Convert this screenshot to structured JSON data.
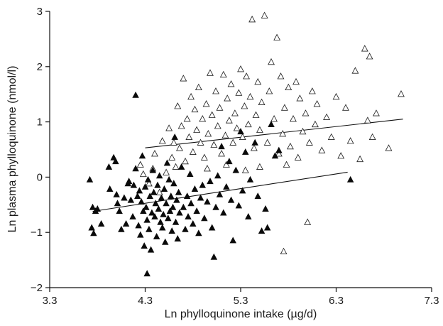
{
  "chart_data": {
    "type": "scatter",
    "title": "",
    "xlabel": "Ln phylloquinone intake (µg/d)",
    "ylabel": "Ln plasma phylloquinone (nmol/l)",
    "xlim": [
      3.3,
      7.3
    ],
    "ylim": [
      -2,
      3
    ],
    "xticks": [
      "3.3",
      "4.3",
      "5.3",
      "6.3",
      "7.3"
    ],
    "yticks": [
      "−2",
      "−1",
      "0",
      "1",
      "2",
      "3"
    ],
    "grid": false,
    "legend": "none",
    "series": [
      {
        "marker": "filled-triangle",
        "color": "#000000",
        "points": [
          [
            3.72,
            -0.05
          ],
          [
            3.74,
            -0.92
          ],
          [
            3.75,
            -0.55
          ],
          [
            3.76,
            -1.02
          ],
          [
            3.78,
            -0.62
          ],
          [
            3.8,
            -0.58
          ],
          [
            3.84,
            -0.85
          ],
          [
            3.92,
            0.18
          ],
          [
            3.93,
            -0.22
          ],
          [
            3.97,
            0.35
          ],
          [
            3.99,
            0.28
          ],
          [
            4.0,
            -0.32
          ],
          [
            4.01,
            -0.48
          ],
          [
            4.03,
            -0.62
          ],
          [
            4.05,
            -0.95
          ],
          [
            4.08,
            -0.38
          ],
          [
            4.1,
            -0.85
          ],
          [
            4.12,
            -0.12
          ],
          [
            4.13,
            -0.08
          ],
          [
            4.15,
            -0.42
          ],
          [
            4.17,
            -0.72
          ],
          [
            4.18,
            -0.15
          ],
          [
            4.2,
            0.15
          ],
          [
            4.2,
            1.48
          ],
          [
            4.22,
            -0.35
          ],
          [
            4.23,
            -0.88
          ],
          [
            4.24,
            -0.25
          ],
          [
            4.25,
            -1.05
          ],
          [
            4.26,
            -0.45
          ],
          [
            4.27,
            0.38
          ],
          [
            4.28,
            -0.62
          ],
          [
            4.29,
            -1.25
          ],
          [
            4.3,
            -0.18
          ],
          [
            4.31,
            -0.55
          ],
          [
            4.32,
            -0.78
          ],
          [
            4.32,
            -1.75
          ],
          [
            4.33,
            -0.05
          ],
          [
            4.34,
            -0.95
          ],
          [
            4.35,
            -0.35
          ],
          [
            4.36,
            -1.32
          ],
          [
            4.37,
            -0.65
          ],
          [
            4.38,
            0.12
          ],
          [
            4.39,
            -0.28
          ],
          [
            4.4,
            -0.72
          ],
          [
            4.41,
            -0.48
          ],
          [
            4.42,
            -1.08
          ],
          [
            4.43,
            -0.15
          ],
          [
            4.44,
            -0.58
          ],
          [
            4.45,
            0.02
          ],
          [
            4.46,
            -0.82
          ],
          [
            4.47,
            -0.38
          ],
          [
            4.48,
            -0.92
          ],
          [
            4.49,
            -0.68
          ],
          [
            4.5,
            -0.22
          ],
          [
            4.51,
            -1.18
          ],
          [
            4.52,
            -0.48
          ],
          [
            4.53,
            0.25
          ],
          [
            4.54,
            -0.75
          ],
          [
            4.55,
            -0.05
          ],
          [
            4.56,
            -0.62
          ],
          [
            4.57,
            -0.35
          ],
          [
            4.58,
            -0.98
          ],
          [
            4.59,
            -0.55
          ],
          [
            4.6,
            -0.12
          ],
          [
            4.61,
            0.72
          ],
          [
            4.62,
            -0.82
          ],
          [
            4.63,
            -0.42
          ],
          [
            4.64,
            -1.12
          ],
          [
            4.65,
            -0.28
          ],
          [
            4.66,
            -0.65
          ],
          [
            4.68,
            0.18
          ],
          [
            4.7,
            -0.55
          ],
          [
            4.72,
            -0.95
          ],
          [
            4.74,
            -0.35
          ],
          [
            4.75,
            -0.72
          ],
          [
            4.77,
            0.05
          ],
          [
            4.78,
            -0.48
          ],
          [
            4.8,
            -0.85
          ],
          [
            4.82,
            -0.22
          ],
          [
            4.84,
            -0.62
          ],
          [
            4.86,
            -1.02
          ],
          [
            4.88,
            -0.38
          ],
          [
            4.9,
            -0.15
          ],
          [
            4.92,
            -0.75
          ],
          [
            4.95,
            -0.45
          ],
          [
            4.98,
            -0.08
          ],
          [
            5.0,
            -0.92
          ],
          [
            5.02,
            -1.45
          ],
          [
            5.04,
            -0.55
          ],
          [
            5.06,
            0.02
          ],
          [
            5.08,
            -0.32
          ],
          [
            5.1,
            0.55
          ],
          [
            5.12,
            -0.65
          ],
          [
            5.15,
            -0.18
          ],
          [
            5.18,
            0.28
          ],
          [
            5.2,
            -0.42
          ],
          [
            5.22,
            -1.15
          ],
          [
            5.25,
            0.12
          ],
          [
            5.28,
            -0.52
          ],
          [
            5.3,
            0.82
          ],
          [
            5.32,
            -0.25
          ],
          [
            5.35,
            0.45
          ],
          [
            5.38,
            -0.72
          ],
          [
            5.4,
            -0.05
          ],
          [
            5.45,
            0.62
          ],
          [
            5.48,
            -0.35
          ],
          [
            5.52,
            -0.98
          ],
          [
            5.56,
            -0.58
          ],
          [
            5.58,
            -0.92
          ],
          [
            5.62,
            0.95
          ],
          [
            5.66,
            0.38
          ],
          [
            5.7,
            0.48
          ],
          [
            6.45,
            -0.05
          ]
        ]
      },
      {
        "marker": "open-triangle",
        "color": "#000000",
        "points": [
          [
            4.25,
            0.22
          ],
          [
            4.28,
            0.05
          ],
          [
            4.34,
            -0.12
          ],
          [
            4.38,
            0.15
          ],
          [
            4.4,
            0.42
          ],
          [
            4.45,
            -0.28
          ],
          [
            4.48,
            0.65
          ],
          [
            4.52,
            0.08
          ],
          [
            4.55,
            0.88
          ],
          [
            4.58,
            0.35
          ],
          [
            4.6,
            0.62
          ],
          [
            4.62,
            0.18
          ],
          [
            4.64,
            1.28
          ],
          [
            4.66,
            0.52
          ],
          [
            4.68,
            0.92
          ],
          [
            4.7,
            1.78
          ],
          [
            4.72,
            0.28
          ],
          [
            4.74,
            1.05
          ],
          [
            4.76,
            0.72
          ],
          [
            4.78,
            1.45
          ],
          [
            4.8,
            0.45
          ],
          [
            4.82,
            1.22
          ],
          [
            4.84,
            0.85
          ],
          [
            4.86,
            1.62
          ],
          [
            4.88,
            0.62
          ],
          [
            4.9,
            1.05
          ],
          [
            4.92,
            0.35
          ],
          [
            4.94,
            1.32
          ],
          [
            4.96,
            0.78
          ],
          [
            4.98,
            1.88
          ],
          [
            5.0,
            1.12
          ],
          [
            5.02,
            0.58
          ],
          [
            5.04,
            1.55
          ],
          [
            5.06,
            0.92
          ],
          [
            5.08,
            1.25
          ],
          [
            5.1,
            0.42
          ],
          [
            5.12,
            1.85
          ],
          [
            5.14,
            0.75
          ],
          [
            5.16,
            1.42
          ],
          [
            5.18,
            1.02
          ],
          [
            5.2,
            1.68
          ],
          [
            5.22,
            0.62
          ],
          [
            5.24,
            1.15
          ],
          [
            5.26,
            0.88
          ],
          [
            5.28,
            1.52
          ],
          [
            5.3,
            1.95
          ],
          [
            5.32,
            0.72
          ],
          [
            5.34,
            1.28
          ],
          [
            5.36,
            1.82
          ],
          [
            5.38,
            0.95
          ],
          [
            5.4,
            1.45
          ],
          [
            5.42,
            2.85
          ],
          [
            5.44,
            0.52
          ],
          [
            5.46,
            1.12
          ],
          [
            5.48,
            1.72
          ],
          [
            5.5,
            0.85
          ],
          [
            5.52,
            1.35
          ],
          [
            5.55,
            2.92
          ],
          [
            5.58,
            0.62
          ],
          [
            5.6,
            1.55
          ],
          [
            5.62,
            2.08
          ],
          [
            5.65,
            1.05
          ],
          [
            5.68,
            2.52
          ],
          [
            5.7,
            0.42
          ],
          [
            5.72,
            1.82
          ],
          [
            5.74,
            0.78
          ],
          [
            5.76,
            1.25
          ],
          [
            5.78,
            0.22
          ],
          [
            5.8,
            1.62
          ],
          [
            5.82,
            0.55
          ],
          [
            5.85,
            1.05
          ],
          [
            5.88,
            1.72
          ],
          [
            5.9,
            0.35
          ],
          [
            5.92,
            1.42
          ],
          [
            5.95,
            0.82
          ],
          [
            5.98,
            1.15
          ],
          [
            6.0,
            -0.82
          ],
          [
            6.02,
            0.62
          ],
          [
            6.05,
            1.55
          ],
          [
            6.08,
            0.95
          ],
          [
            6.1,
            1.32
          ],
          [
            6.15,
            0.48
          ],
          [
            6.2,
            1.08
          ],
          [
            6.25,
            0.72
          ],
          [
            6.3,
            1.45
          ],
          [
            6.35,
            0.38
          ],
          [
            6.4,
            1.25
          ],
          [
            6.45,
            0.65
          ],
          [
            6.5,
            1.92
          ],
          [
            6.55,
            0.32
          ],
          [
            6.6,
            2.32
          ],
          [
            6.63,
            1.02
          ],
          [
            6.65,
            2.18
          ],
          [
            6.68,
            0.72
          ],
          [
            6.72,
            1.15
          ],
          [
            6.85,
            0.52
          ],
          [
            6.98,
            1.5
          ],
          [
            5.75,
            -1.35
          ],
          [
            5.35,
            0.12
          ],
          [
            5.5,
            0.18
          ],
          [
            4.95,
            0.15
          ],
          [
            5.15,
            0.22
          ]
        ]
      }
    ],
    "regression_lines": [
      {
        "style": "solid",
        "x": [
          4.3,
          7.0
        ],
        "y": [
          0.53,
          1.05
        ]
      },
      {
        "style": "solid",
        "x": [
          3.75,
          6.42
        ],
        "y": [
          -0.62,
          0.09
        ]
      }
    ]
  }
}
